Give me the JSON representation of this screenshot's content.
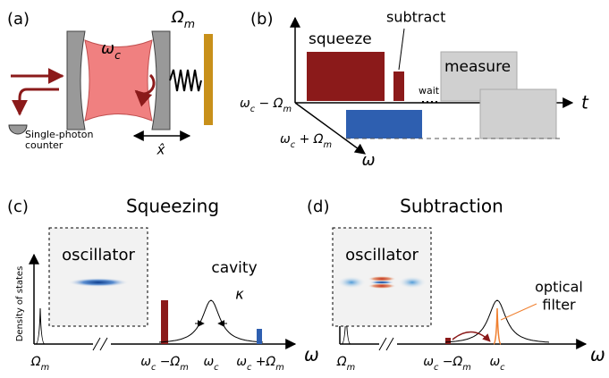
{
  "panel_a": {
    "label": "(a)",
    "omega_m": [
      {
        "t": "Ω",
        "sub": "m"
      }
    ],
    "omega_c": [
      {
        "t": "ω",
        "sub": "c"
      }
    ],
    "detector": [
      "Single-photon",
      "counter"
    ],
    "displacement": "x̂"
  },
  "panel_b": {
    "label": "(b)",
    "squeeze": "squeeze",
    "subtract": "subtract",
    "measure": "measure",
    "wait": "wait",
    "time_axis": "t",
    "freq_axis": "ω",
    "lower": [
      {
        "t": "ω",
        "sub": "c"
      },
      {
        "t": " − Ω",
        "sub": "m"
      }
    ],
    "upper": [
      {
        "t": "ω",
        "sub": "c"
      },
      {
        "t": " + Ω",
        "sub": "m"
      }
    ]
  },
  "panel_c": {
    "label": "(c)",
    "title": "Squeezing",
    "inset": "oscillator",
    "y_axis": "Density of states",
    "cavity": "cavity",
    "linewidth": "κ",
    "x_axis": "ω",
    "ticks": [
      [
        {
          "t": "Ω",
          "sub": "m"
        }
      ],
      [
        {
          "t": "ω",
          "sub": "c"
        },
        {
          "t": " −Ω",
          "sub": "m"
        }
      ],
      [
        {
          "t": "ω",
          "sub": "c"
        }
      ],
      [
        {
          "t": "ω",
          "sub": "c"
        },
        {
          "t": " +Ω",
          "sub": "m"
        }
      ]
    ]
  },
  "panel_d": {
    "label": "(d)",
    "title": "Subtraction",
    "inset": "oscillator",
    "filter": [
      "optical",
      "filter"
    ],
    "x_axis": "ω",
    "ticks": [
      [
        {
          "t": "Ω",
          "sub": "m"
        }
      ],
      [
        {
          "t": "ω",
          "sub": "c"
        },
        {
          "t": " −Ω",
          "sub": "m"
        }
      ],
      [
        {
          "t": "ω",
          "sub": "c"
        }
      ]
    ]
  }
}
